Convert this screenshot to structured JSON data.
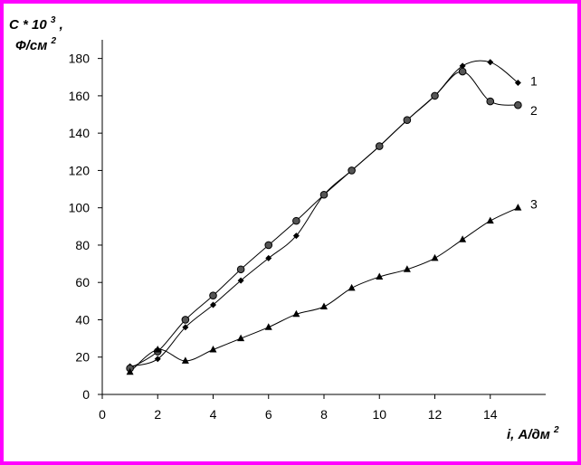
{
  "chart_data": {
    "type": "line",
    "title": "",
    "ylabel": {
      "main": "C * 10",
      "sup": "3",
      "suffix": ",",
      "unit": "Ф/см",
      "unit_sup": "2"
    },
    "xlabel": {
      "main": "i, А/дм",
      "sup": "2"
    },
    "xlim": [
      0,
      16
    ],
    "ylim": [
      0,
      190
    ],
    "xticks": [
      0,
      2,
      4,
      6,
      8,
      10,
      12,
      14
    ],
    "yticks": [
      0,
      20,
      40,
      60,
      80,
      100,
      120,
      140,
      160,
      180
    ],
    "grid": false,
    "series": [
      {
        "name": "1",
        "marker": "diamond",
        "x": [
          1,
          2,
          3,
          4,
          5,
          6,
          7,
          8,
          9,
          10,
          11,
          12,
          13,
          14,
          15
        ],
        "y": [
          15,
          19,
          36,
          48,
          61,
          73,
          85,
          107,
          120,
          133,
          147,
          160,
          176,
          178,
          167
        ]
      },
      {
        "name": "2",
        "marker": "circle",
        "x": [
          1,
          2,
          3,
          4,
          5,
          6,
          7,
          8,
          9,
          10,
          11,
          12,
          13,
          14,
          15
        ],
        "y": [
          14,
          23,
          40,
          53,
          67,
          80,
          93,
          107,
          120,
          133,
          147,
          160,
          173,
          157,
          155
        ]
      },
      {
        "name": "3",
        "marker": "triangle",
        "x": [
          1,
          2,
          3,
          4,
          5,
          6,
          7,
          8,
          9,
          10,
          11,
          12,
          13,
          14,
          15
        ],
        "y": [
          12,
          24,
          18,
          24,
          30,
          36,
          43,
          47,
          57,
          63,
          67,
          73,
          83,
          93,
          100
        ]
      }
    ],
    "colors": {
      "line": "#000000",
      "frame": "#ff00ff",
      "background": "#ffffff"
    }
  }
}
